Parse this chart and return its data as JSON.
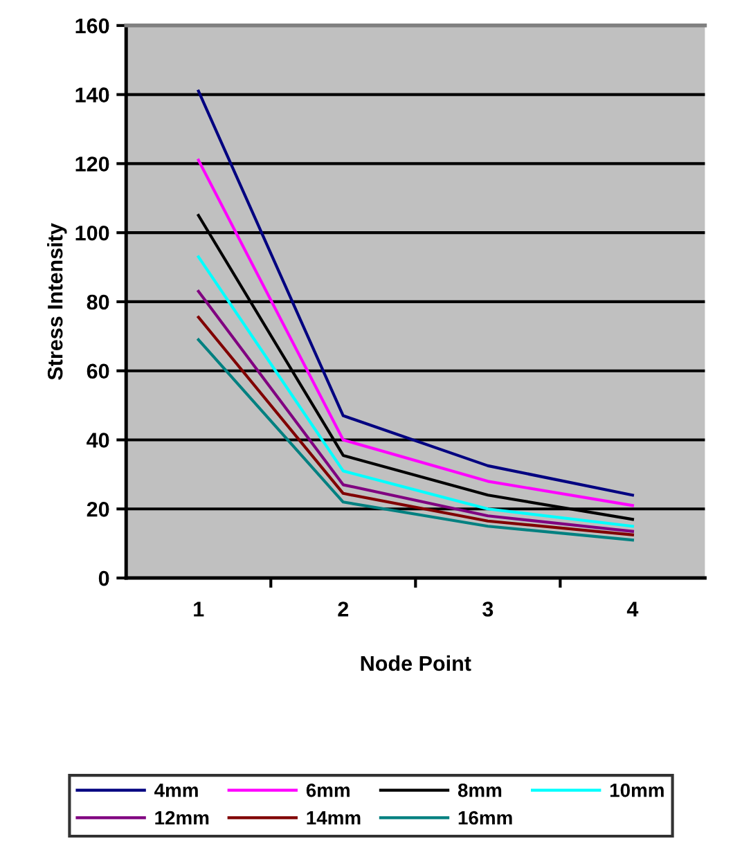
{
  "chart_data": {
    "type": "line",
    "xlabel": "Node Point",
    "ylabel": "Stress Intensity",
    "categories": [
      "1",
      "2",
      "3",
      "4"
    ],
    "series": [
      {
        "name": "4mm",
        "color": "#000080",
        "values": [
          141,
          47,
          32.5,
          24
        ]
      },
      {
        "name": "6mm",
        "color": "#ff00ff",
        "values": [
          121,
          40,
          28,
          21
        ]
      },
      {
        "name": "8mm",
        "color": "#000000",
        "values": [
          105,
          35.5,
          24,
          17
        ]
      },
      {
        "name": "10mm",
        "color": "#00ffff",
        "values": [
          93,
          31,
          20,
          15
        ]
      },
      {
        "name": "12mm",
        "color": "#800080",
        "values": [
          83,
          27,
          18,
          13.5
        ]
      },
      {
        "name": "14mm",
        "color": "#800000",
        "values": [
          75.5,
          24.5,
          16.5,
          12.5
        ]
      },
      {
        "name": "16mm",
        "color": "#008080",
        "values": [
          69,
          22,
          15,
          11
        ]
      }
    ],
    "ylim": [
      0,
      160
    ],
    "yticks": [
      0,
      20,
      40,
      60,
      80,
      100,
      120,
      140,
      160
    ],
    "grid": "y",
    "legend": "bottom",
    "marker": "none",
    "line_style": "solid"
  }
}
